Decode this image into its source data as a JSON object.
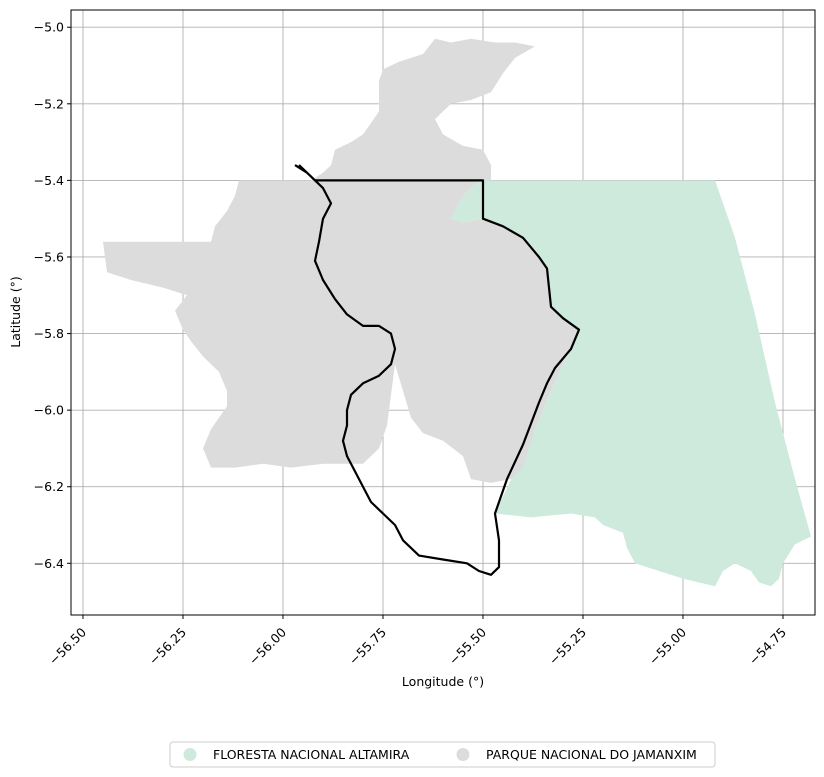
{
  "axes": {
    "xlabel": "Longitude (°)",
    "ylabel": "Latitude (°)",
    "xlim": [
      -56.53,
      -54.67
    ],
    "ylim": [
      -6.535,
      -4.955
    ],
    "grid": true,
    "xticks": [
      -56.5,
      -56.25,
      -56.0,
      -55.75,
      -55.5,
      -55.25,
      -55.0,
      -54.75
    ],
    "xtick_labels": [
      "−56.50",
      "−56.25",
      "−56.00",
      "−55.75",
      "−55.50",
      "−55.25",
      "−55.00",
      "−54.75"
    ],
    "yticks": [
      -5.0,
      -5.2,
      -5.4,
      -5.6,
      -5.8,
      -6.0,
      -6.2,
      -6.4
    ],
    "ytick_labels": [
      "−5.0",
      "−5.2",
      "−5.4",
      "−5.6",
      "−5.8",
      "−6.0",
      "−6.2",
      "−6.4"
    ]
  },
  "legend": {
    "placement": "bottom-center",
    "items": [
      {
        "label": "FLORESTA NACIONAL ALTAMIRA",
        "color": "#cdeadc"
      },
      {
        "label": "PARQUE NACIONAL DO JAMANXIM",
        "color": "#dcdcdc"
      }
    ]
  },
  "chart_data": {
    "type": "map",
    "layers": [
      {
        "name": "FLORESTA NACIONAL ALTAMIRA",
        "color": "#cdeadc",
        "polygon": [
          [
            -55.58,
            -5.5
          ],
          [
            -55.55,
            -5.44
          ],
          [
            -55.51,
            -5.4
          ],
          [
            -54.92,
            -5.4
          ],
          [
            -54.87,
            -5.55
          ],
          [
            -54.82,
            -5.75
          ],
          [
            -54.77,
            -5.98
          ],
          [
            -54.72,
            -6.18
          ],
          [
            -54.68,
            -6.33
          ],
          [
            -54.72,
            -6.35
          ],
          [
            -54.75,
            -6.4
          ],
          [
            -54.76,
            -6.44
          ],
          [
            -54.78,
            -6.46
          ],
          [
            -54.81,
            -6.45
          ],
          [
            -54.83,
            -6.42
          ],
          [
            -54.87,
            -6.4
          ],
          [
            -54.9,
            -6.42
          ],
          [
            -54.92,
            -6.46
          ],
          [
            -54.96,
            -6.45
          ],
          [
            -55.0,
            -6.44
          ],
          [
            -55.06,
            -6.42
          ],
          [
            -55.12,
            -6.4
          ],
          [
            -55.14,
            -6.36
          ],
          [
            -55.15,
            -6.32
          ],
          [
            -55.2,
            -6.3
          ],
          [
            -55.22,
            -6.28
          ],
          [
            -55.28,
            -6.27
          ],
          [
            -55.38,
            -6.28
          ],
          [
            -55.47,
            -6.27
          ],
          [
            -55.37,
            -6.05
          ],
          [
            -55.33,
            -5.95
          ],
          [
            -55.3,
            -5.88
          ],
          [
            -55.26,
            -5.79
          ],
          [
            -55.3,
            -5.76
          ],
          [
            -55.33,
            -5.73
          ],
          [
            -55.34,
            -5.63
          ],
          [
            -55.36,
            -5.6
          ],
          [
            -55.4,
            -5.55
          ],
          [
            -55.45,
            -5.52
          ],
          [
            -55.5,
            -5.5
          ],
          [
            -55.55,
            -5.51
          ]
        ]
      },
      {
        "name": "PARQUE NACIONAL DO JAMANXIM",
        "color": "#dcdcdc",
        "polygon": [
          [
            -56.45,
            -5.56
          ],
          [
            -56.18,
            -5.56
          ],
          [
            -56.17,
            -5.52
          ],
          [
            -56.14,
            -5.48
          ],
          [
            -56.12,
            -5.44
          ],
          [
            -56.11,
            -5.4
          ],
          [
            -55.93,
            -5.4
          ],
          [
            -55.9,
            -5.38
          ],
          [
            -55.88,
            -5.36
          ],
          [
            -55.87,
            -5.32
          ],
          [
            -55.83,
            -5.3
          ],
          [
            -55.8,
            -5.28
          ],
          [
            -55.78,
            -5.25
          ],
          [
            -55.76,
            -5.22
          ],
          [
            -55.76,
            -5.18
          ],
          [
            -55.76,
            -5.14
          ],
          [
            -55.75,
            -5.11
          ],
          [
            -55.71,
            -5.09
          ],
          [
            -55.65,
            -5.07
          ],
          [
            -55.62,
            -5.03
          ],
          [
            -55.58,
            -5.04
          ],
          [
            -55.53,
            -5.03
          ],
          [
            -55.47,
            -5.04
          ],
          [
            -55.42,
            -5.04
          ],
          [
            -55.37,
            -5.05
          ],
          [
            -55.42,
            -5.08
          ],
          [
            -55.45,
            -5.12
          ],
          [
            -55.48,
            -5.17
          ],
          [
            -55.53,
            -5.19
          ],
          [
            -55.58,
            -5.2
          ],
          [
            -55.62,
            -5.24
          ],
          [
            -55.6,
            -5.28
          ],
          [
            -55.55,
            -5.31
          ],
          [
            -55.5,
            -5.32
          ],
          [
            -55.48,
            -5.36
          ],
          [
            -55.48,
            -5.4
          ],
          [
            -55.51,
            -5.4
          ],
          [
            -55.55,
            -5.44
          ],
          [
            -55.58,
            -5.5
          ],
          [
            -55.55,
            -5.51
          ],
          [
            -55.5,
            -5.5
          ],
          [
            -55.45,
            -5.52
          ],
          [
            -55.4,
            -5.55
          ],
          [
            -55.36,
            -5.6
          ],
          [
            -55.34,
            -5.63
          ],
          [
            -55.33,
            -5.73
          ],
          [
            -55.3,
            -5.76
          ],
          [
            -55.26,
            -5.79
          ],
          [
            -55.3,
            -5.88
          ],
          [
            -55.33,
            -5.95
          ],
          [
            -55.37,
            -6.05
          ],
          [
            -55.4,
            -6.15
          ],
          [
            -55.43,
            -6.18
          ],
          [
            -55.48,
            -6.19
          ],
          [
            -55.53,
            -6.18
          ],
          [
            -55.55,
            -6.12
          ],
          [
            -55.6,
            -6.08
          ],
          [
            -55.65,
            -6.06
          ],
          [
            -55.68,
            -6.02
          ],
          [
            -55.7,
            -5.95
          ],
          [
            -55.72,
            -5.88
          ],
          [
            -55.73,
            -5.96
          ],
          [
            -55.74,
            -6.04
          ],
          [
            -55.76,
            -6.1
          ],
          [
            -55.8,
            -6.14
          ],
          [
            -55.9,
            -6.14
          ],
          [
            -55.98,
            -6.15
          ],
          [
            -56.05,
            -6.14
          ],
          [
            -56.12,
            -6.15
          ],
          [
            -56.18,
            -6.15
          ],
          [
            -56.2,
            -6.1
          ],
          [
            -56.18,
            -6.05
          ],
          [
            -56.14,
            -5.99
          ],
          [
            -56.14,
            -5.95
          ],
          [
            -56.16,
            -5.9
          ],
          [
            -56.2,
            -5.86
          ],
          [
            -56.23,
            -5.82
          ],
          [
            -56.25,
            -5.79
          ],
          [
            -56.27,
            -5.74
          ],
          [
            -56.24,
            -5.7
          ],
          [
            -56.3,
            -5.68
          ],
          [
            -56.38,
            -5.66
          ],
          [
            -56.44,
            -5.64
          ]
        ]
      }
    ],
    "outline": {
      "name": "boundary",
      "color": "#000000",
      "line": [
        [
          -55.96,
          -5.36
        ],
        [
          -55.94,
          -5.38
        ],
        [
          -55.92,
          -5.4
        ],
        [
          -55.5,
          -5.4
        ],
        [
          -55.5,
          -5.47
        ],
        [
          -55.5,
          -5.5
        ],
        [
          -55.45,
          -5.52
        ],
        [
          -55.4,
          -5.55
        ],
        [
          -55.36,
          -5.6
        ],
        [
          -55.34,
          -5.63
        ],
        [
          -55.33,
          -5.73
        ],
        [
          -55.3,
          -5.76
        ],
        [
          -55.26,
          -5.79
        ],
        [
          -55.28,
          -5.84
        ],
        [
          -55.32,
          -5.89
        ],
        [
          -55.34,
          -5.93
        ],
        [
          -55.36,
          -5.98
        ],
        [
          -55.4,
          -6.09
        ],
        [
          -55.44,
          -6.18
        ],
        [
          -55.47,
          -6.27
        ],
        [
          -55.46,
          -6.34
        ],
        [
          -55.46,
          -6.38
        ],
        [
          -55.46,
          -6.41
        ],
        [
          -55.48,
          -6.43
        ],
        [
          -55.51,
          -6.42
        ],
        [
          -55.54,
          -6.4
        ],
        [
          -55.6,
          -6.39
        ],
        [
          -55.66,
          -6.38
        ],
        [
          -55.7,
          -6.34
        ],
        [
          -55.72,
          -6.3
        ],
        [
          -55.75,
          -6.27
        ],
        [
          -55.78,
          -6.24
        ],
        [
          -55.8,
          -6.2
        ],
        [
          -55.82,
          -6.16
        ],
        [
          -55.84,
          -6.12
        ],
        [
          -55.85,
          -6.08
        ],
        [
          -55.84,
          -6.04
        ],
        [
          -55.84,
          -6.0
        ],
        [
          -55.83,
          -5.96
        ],
        [
          -55.8,
          -5.93
        ],
        [
          -55.76,
          -5.91
        ],
        [
          -55.73,
          -5.88
        ],
        [
          -55.72,
          -5.84
        ],
        [
          -55.73,
          -5.8
        ],
        [
          -55.76,
          -5.78
        ],
        [
          -55.8,
          -5.78
        ],
        [
          -55.84,
          -5.75
        ],
        [
          -55.87,
          -5.71
        ],
        [
          -55.9,
          -5.66
        ],
        [
          -55.92,
          -5.61
        ],
        [
          -55.91,
          -5.56
        ],
        [
          -55.9,
          -5.5
        ],
        [
          -55.88,
          -5.46
        ],
        [
          -55.9,
          -5.42
        ],
        [
          -55.94,
          -5.38
        ],
        [
          -55.97,
          -5.36
        ]
      ]
    }
  }
}
